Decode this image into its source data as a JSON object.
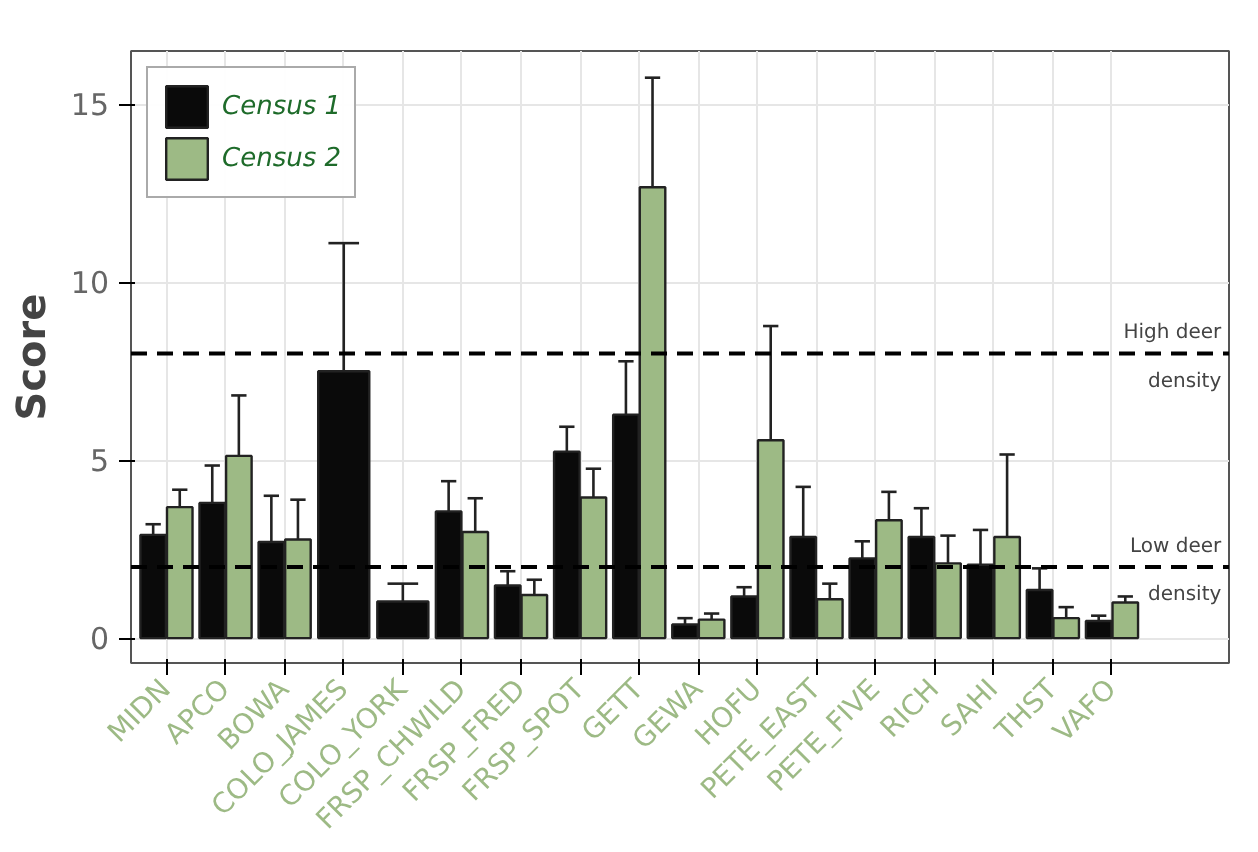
{
  "chart_data": {
    "type": "bar",
    "ylabel": "Score",
    "categories": [
      "MIDN",
      "APCO",
      "BOWA",
      "COLO_JAMES",
      "COLO_YORK",
      "FRSP_CHWILD",
      "FRSP_FRED",
      "FRSP_SPOT",
      "GETT",
      "GEWA",
      "HOFU",
      "PETE_EAST",
      "PETE_FIVE",
      "RICH",
      "SAHI",
      "THST",
      "VAFO"
    ],
    "series": [
      {
        "name": "Census 1",
        "color": "#0a0a0a",
        "values": [
          2.9,
          3.8,
          2.7,
          7.5,
          1.03,
          3.56,
          1.48,
          5.24,
          6.28,
          0.38,
          1.17,
          2.84,
          2.24,
          2.84,
          2.06,
          1.35,
          0.48
        ],
        "errors": [
          [
            2.9,
            3.2
          ],
          [
            3.8,
            4.85
          ],
          [
            2.7,
            4.0
          ],
          [
            7.5,
            11.1
          ],
          [
            1.03,
            1.53
          ],
          [
            3.56,
            4.41
          ],
          [
            1.48,
            1.88
          ],
          [
            5.24,
            5.94
          ],
          [
            6.28,
            7.78
          ],
          [
            0.38,
            0.56
          ],
          [
            1.17,
            1.43
          ],
          [
            2.84,
            4.25
          ],
          [
            2.24,
            2.72
          ],
          [
            2.84,
            3.65
          ],
          [
            2.06,
            3.04
          ],
          [
            1.35,
            1.96
          ],
          [
            0.48,
            0.63
          ]
        ]
      },
      {
        "name": "Census 2",
        "color": "#9dba85",
        "values": [
          3.68,
          5.12,
          2.77,
          null,
          null,
          2.98,
          1.21,
          3.95,
          12.67,
          0.52,
          5.56,
          1.09,
          3.31,
          2.1,
          2.84,
          0.56,
          1.0
        ],
        "errors": [
          [
            3.68,
            4.17
          ],
          [
            5.12,
            6.82
          ],
          [
            2.77,
            3.89
          ],
          null,
          null,
          [
            2.98,
            3.93
          ],
          [
            1.21,
            1.64
          ],
          [
            3.95,
            4.76
          ],
          [
            12.67,
            15.75
          ],
          [
            0.52,
            0.69
          ],
          [
            5.56,
            8.77
          ],
          [
            1.09,
            1.53
          ],
          [
            3.31,
            4.11
          ],
          [
            2.1,
            2.88
          ],
          [
            2.84,
            5.16
          ],
          [
            0.56,
            0.87
          ],
          [
            1.0,
            1.17
          ]
        ]
      }
    ],
    "ylim": [
      -0.7,
      16.5
    ],
    "yticks": [
      0,
      5,
      10,
      15
    ],
    "grid": true,
    "legend": "top left",
    "ref_lines": [
      {
        "axis": "y",
        "value": 8,
        "label": "High deer\ndensity",
        "line_style": "dashed"
      },
      {
        "axis": "y",
        "value": 2,
        "label": "Low deer\ndensity",
        "line_style": "dashed"
      }
    ]
  }
}
